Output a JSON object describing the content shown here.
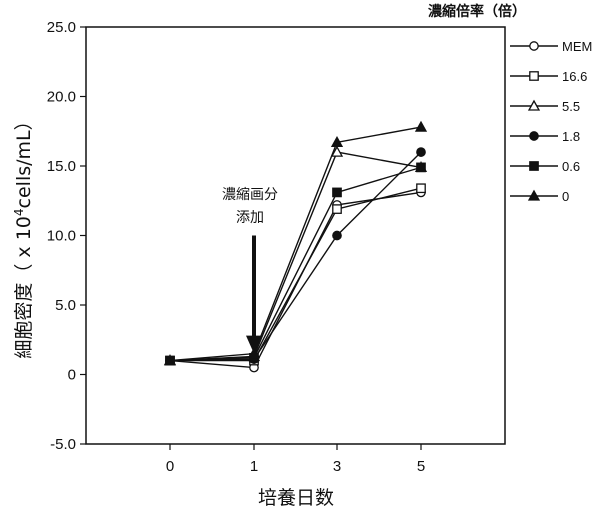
{
  "chart_data": {
    "type": "line",
    "x": [
      0,
      1,
      3,
      5
    ],
    "x_tick_labels": [
      "0",
      "1",
      "3",
      "5"
    ],
    "ylim": [
      -5.0,
      25.0
    ],
    "y_ticks": [
      -5.0,
      0,
      5.0,
      10.0,
      15.0,
      20.0,
      25.0
    ],
    "y_tick_labels": [
      "-5.0",
      "0",
      "5.0",
      "10.0",
      "15.0",
      "20.0",
      "25.0"
    ],
    "ylabel_main": "細胞密度（ x 10",
    "ylabel_sup": "4",
    "ylabel_tail": "cells/mL）",
    "xlabel": "培養日数",
    "grid": false,
    "legend_title": "濃縮倍率（倍）",
    "legend_position": "right",
    "annotation": {
      "lines": [
        "濃縮画分",
        "添加"
      ],
      "arrow_at_x": 1,
      "arrow_from_y": 10.0,
      "arrow_to_y": 1.5
    },
    "series": [
      {
        "name": "MEM",
        "marker": "open-circle",
        "values": [
          1.0,
          0.5,
          12.2,
          13.1
        ]
      },
      {
        "name": "16.6",
        "marker": "open-square",
        "values": [
          1.0,
          1.0,
          11.9,
          13.4
        ]
      },
      {
        "name": "5.5",
        "marker": "open-triangle",
        "values": [
          1.0,
          1.3,
          16.0,
          14.9
        ]
      },
      {
        "name": "1.8",
        "marker": "filled-circle",
        "values": [
          1.0,
          1.1,
          10.0,
          16.0
        ]
      },
      {
        "name": "0.6",
        "marker": "filled-square",
        "values": [
          1.0,
          1.2,
          13.1,
          14.9
        ]
      },
      {
        "name": "0",
        "marker": "filled-triangle",
        "values": [
          1.0,
          1.5,
          16.7,
          17.8
        ]
      }
    ]
  }
}
